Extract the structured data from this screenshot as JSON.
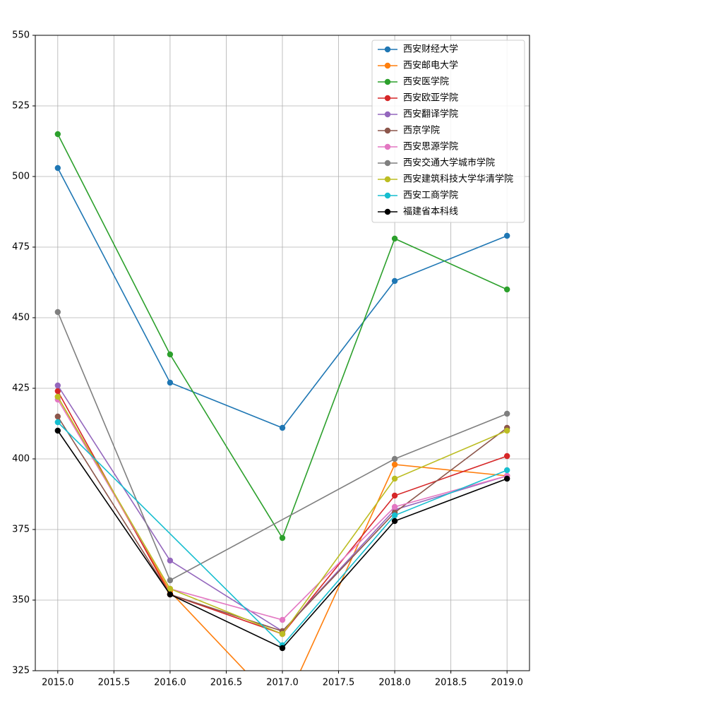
{
  "chart_data": {
    "type": "line",
    "x": [
      2015,
      2016,
      2017,
      2018,
      2019
    ],
    "xlim": [
      2014.8,
      2019.2
    ],
    "xticks": [
      {
        "value": 2015,
        "label": "2015.0"
      },
      {
        "value": 2015.5,
        "label": "2015.5"
      },
      {
        "value": 2016,
        "label": "2016.0"
      },
      {
        "value": 2016.5,
        "label": "2016.5"
      },
      {
        "value": 2017,
        "label": "2017.0"
      },
      {
        "value": 2017.5,
        "label": "2017.5"
      },
      {
        "value": 2018,
        "label": "2018.0"
      },
      {
        "value": 2018.5,
        "label": "2018.5"
      },
      {
        "value": 2019,
        "label": "2019.0"
      }
    ],
    "ylim": [
      325,
      550
    ],
    "yticks": [
      325,
      350,
      375,
      400,
      425,
      450,
      475,
      500,
      525,
      550
    ],
    "grid": true,
    "legend": "upper right",
    "series": [
      {
        "name": "西安财经大学",
        "color": "#1f77b4",
        "values": [
          503,
          427,
          411,
          463,
          479
        ]
      },
      {
        "name": "西安邮电大学",
        "color": "#ff7f0e",
        "values": [
          422,
          353,
          311,
          398,
          394
        ]
      },
      {
        "name": "西安医学院",
        "color": "#2ca02c",
        "values": [
          515,
          437,
          372,
          478,
          460
        ]
      },
      {
        "name": "西安欧亚学院",
        "color": "#d62728",
        "values": [
          424,
          352,
          338,
          387,
          401
        ]
      },
      {
        "name": "西安翻译学院",
        "color": "#9467bd",
        "values": [
          426,
          364,
          339,
          382,
          394
        ]
      },
      {
        "name": "西京学院",
        "color": "#8c564b",
        "values": [
          415,
          352,
          339,
          381,
          411
        ]
      },
      {
        "name": "西安思源学院",
        "color": "#e377c2",
        "values": [
          421,
          354,
          343,
          383,
          394
        ]
      },
      {
        "name": "西安交通大学城市学院",
        "color": "#7f7f7f",
        "x": [
          2015,
          2016,
          2018,
          2019
        ],
        "values": [
          452,
          357,
          400,
          416
        ]
      },
      {
        "name": "西安建筑科技大学华清学院",
        "color": "#bcbd22",
        "values": [
          422,
          354,
          338,
          393,
          410
        ]
      },
      {
        "name": "西安工商学院",
        "color": "#17becf",
        "x": [
          2015,
          2017,
          2018,
          2019
        ],
        "values": [
          413,
          334,
          380,
          396
        ]
      },
      {
        "name": "福建省本科线",
        "color": "#000000",
        "values": [
          410,
          352,
          333,
          378,
          393
        ]
      }
    ]
  }
}
